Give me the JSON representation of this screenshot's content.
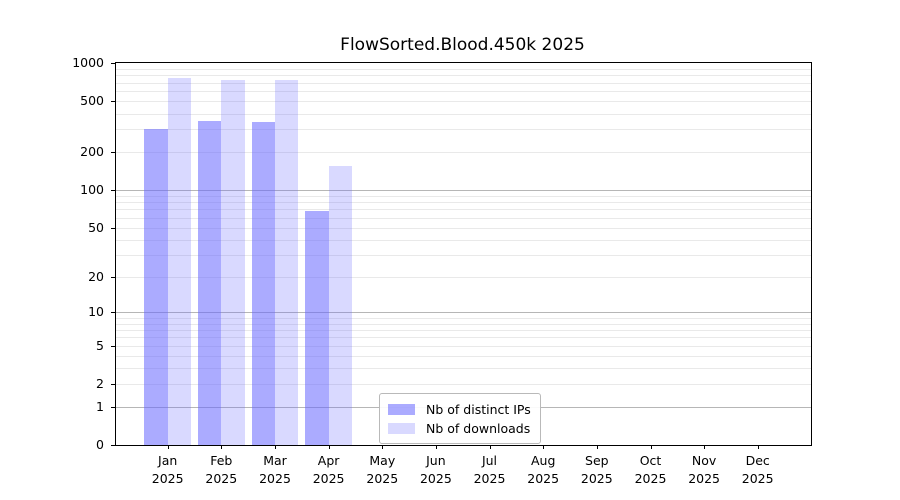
{
  "chart_data": {
    "type": "bar",
    "title": "FlowSorted.Blood.450k 2025",
    "categories": [
      "Jan 2025",
      "Feb 2025",
      "Mar 2025",
      "Apr 2025",
      "May 2025",
      "Jun 2025",
      "Jul 2025",
      "Aug 2025",
      "Sep 2025",
      "Oct 2025",
      "Nov 2025",
      "Dec 2025"
    ],
    "series": [
      {
        "name": "Nb of distinct IPs",
        "color": "#6666ff",
        "alpha": 0.55,
        "values": [
          305,
          350,
          345,
          68,
          0,
          0,
          0,
          0,
          0,
          0,
          0,
          0
        ]
      },
      {
        "name": "Nb of downloads",
        "color": "#6666ff",
        "alpha": 0.25,
        "values": [
          758,
          731,
          739,
          154,
          0,
          0,
          0,
          0,
          0,
          0,
          0,
          0
        ]
      }
    ],
    "yscale": "log1p",
    "ylim": [
      0,
      1000
    ],
    "yticks": [
      0,
      1,
      2,
      5,
      10,
      20,
      50,
      100,
      200,
      500,
      1000
    ],
    "grid": "horizontal minor log-decade gridlines, darker lines at 1, 10, 100",
    "legend_position": "inside plot, lower middle"
  }
}
